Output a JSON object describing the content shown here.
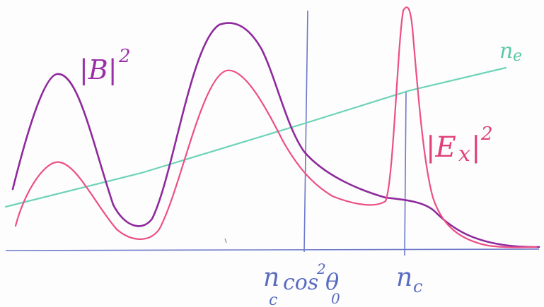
{
  "labels": {
    "b_squared": "|B|",
    "b_squared_exp": "2",
    "ex_squared": "|E",
    "ex_squared_sub": "x",
    "ex_squared_close": "|",
    "ex_squared_exp": "2",
    "ne": "n",
    "ne_sub": "e",
    "axis_ncos": "n",
    "axis_ncos_sub": "c",
    "axis_cos": "cos",
    "axis_cos_exp": "2",
    "axis_theta": "θ",
    "axis_theta_sub": "0",
    "axis_nc": "n",
    "axis_nc_sub": "c"
  },
  "colors": {
    "purple_curve": "#8e2a9c",
    "pink_curve": "#ec4f86",
    "teal_line": "#6dd3b8",
    "axis_blue": "#6b78c8",
    "label_purple": "#9a2fa6",
    "label_pink": "#e0407a",
    "label_teal": "#5cc8a8",
    "label_blue": "#5a6cc0"
  }
}
